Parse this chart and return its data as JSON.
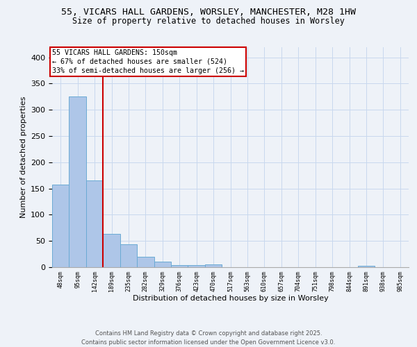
{
  "title_line1": "55, VICARS HALL GARDENS, WORSLEY, MANCHESTER, M28 1HW",
  "title_line2": "Size of property relative to detached houses in Worsley",
  "xlabel": "Distribution of detached houses by size in Worsley",
  "ylabel": "Number of detached properties",
  "bar_values": [
    157,
    325,
    165,
    63,
    43,
    20,
    10,
    4,
    4,
    5,
    0,
    0,
    0,
    0,
    0,
    0,
    0,
    0,
    3,
    0,
    0
  ],
  "bar_labels": [
    "48sqm",
    "95sqm",
    "142sqm",
    "189sqm",
    "235sqm",
    "282sqm",
    "329sqm",
    "376sqm",
    "423sqm",
    "470sqm",
    "517sqm",
    "563sqm",
    "610sqm",
    "657sqm",
    "704sqm",
    "751sqm",
    "798sqm",
    "844sqm",
    "891sqm",
    "938sqm",
    "985sqm"
  ],
  "bar_color": "#aec6e8",
  "bar_edge_color": "#6aaad4",
  "grid_color": "#c8d8ee",
  "annotation_text": "55 VICARS HALL GARDENS: 150sqm\n← 67% of detached houses are smaller (524)\n33% of semi-detached houses are larger (256) →",
  "annotation_box_color": "#ffffff",
  "annotation_box_edge": "#cc0000",
  "vline_color": "#cc0000",
  "vline_pos": 2.5,
  "ylim": [
    0,
    420
  ],
  "yticks": [
    0,
    50,
    100,
    150,
    200,
    250,
    300,
    350,
    400
  ],
  "footer_line1": "Contains HM Land Registry data © Crown copyright and database right 2025.",
  "footer_line2": "Contains public sector information licensed under the Open Government Licence v3.0.",
  "background_color": "#eef2f8"
}
